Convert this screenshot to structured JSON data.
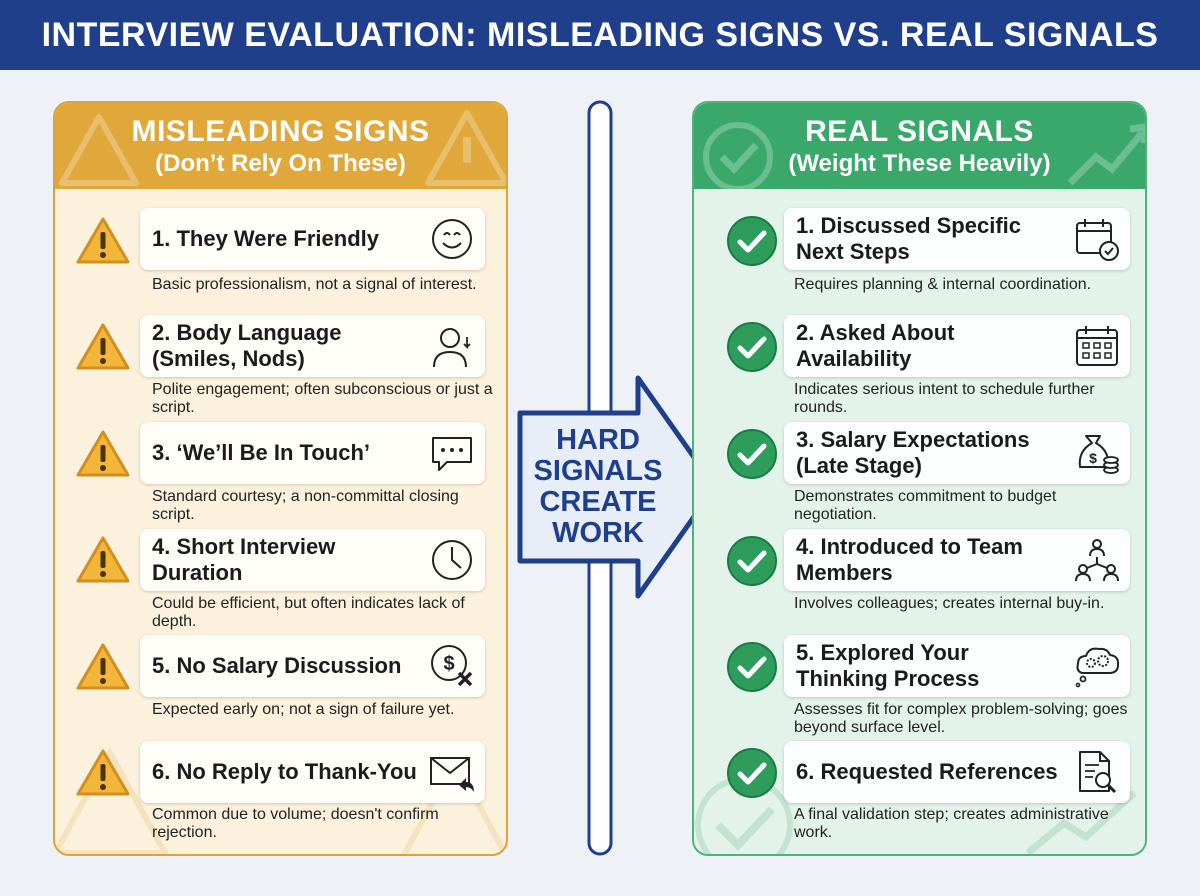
{
  "header": {
    "title": "INTERVIEW EVALUATION: MISLEADING SIGNS VS. REAL SIGNALS"
  },
  "left_panel": {
    "title": "MISLEADING SIGNS",
    "subtitle": "(Don’t Rely On These)",
    "accent": "#e0a83a",
    "items": [
      {
        "label": "1. They Were Friendly",
        "desc": "Basic professionalism, not a signal of interest.",
        "icon": "smiley-icon"
      },
      {
        "label": "2. Body Language (Smiles, Nods)",
        "desc": "Polite engagement; often subconscious or just a script.",
        "icon": "person-nod-icon"
      },
      {
        "label": "3. ‘We’ll Be In Touch’",
        "desc": "Standard courtesy; a non-committal closing script.",
        "icon": "chat-bubble-icon"
      },
      {
        "label": "4. Short Interview Duration",
        "desc": "Could be efficient, but often indicates lack of depth.",
        "icon": "clock-icon"
      },
      {
        "label": "5. No Salary Discussion",
        "desc": "Expected early on; not a sign of failure yet.",
        "icon": "no-money-icon"
      },
      {
        "label": "6. No Reply to Thank-You",
        "desc": "Common due to volume; doesn't confirm rejection.",
        "icon": "envelope-reply-icon"
      }
    ]
  },
  "right_panel": {
    "title": "REAL SIGNALS",
    "subtitle": "(Weight These Heavily)",
    "accent": "#3aa86b",
    "items": [
      {
        "label": "1. Discussed Specific Next Steps",
        "desc": "Requires planning & internal coordination.",
        "icon": "calendar-check-icon"
      },
      {
        "label": "2. Asked About Availability",
        "desc": "Indicates serious intent to schedule further rounds.",
        "icon": "calendar-grid-icon"
      },
      {
        "label": "3. Salary Expectations (Late Stage)",
        "desc": "Demonstrates commitment to budget negotiation.",
        "icon": "money-bag-icon"
      },
      {
        "label": "4. Introduced to Team Members",
        "desc": "Involves colleagues; creates internal buy-in.",
        "icon": "team-network-icon"
      },
      {
        "label": "5. Explored Your Thinking Process",
        "desc": "Assesses fit for complex problem-solving; goes beyond surface level.",
        "icon": "thinking-gears-icon"
      },
      {
        "label": "6. Requested References",
        "desc": "A final validation step; creates administrative work.",
        "icon": "document-search-icon"
      }
    ]
  },
  "center": {
    "arrow_text": "HARD SIGNALS CREATE WORK",
    "color": "#1f3f8a"
  }
}
